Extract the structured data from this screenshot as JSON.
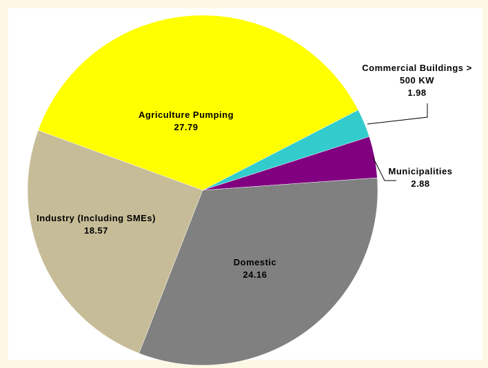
{
  "chart_data": {
    "type": "pie",
    "categories": [
      "Agriculture Pumping",
      "Commercial Buildings > 500 KW",
      "Municipalities",
      "Domestic",
      "Industry (Including SMEs)"
    ],
    "values": [
      27.79,
      1.98,
      2.88,
      24.16,
      18.57
    ],
    "colors": [
      "#ffff00",
      "#33cccc",
      "#800080",
      "#808080",
      "#c6bc97"
    ]
  }
}
